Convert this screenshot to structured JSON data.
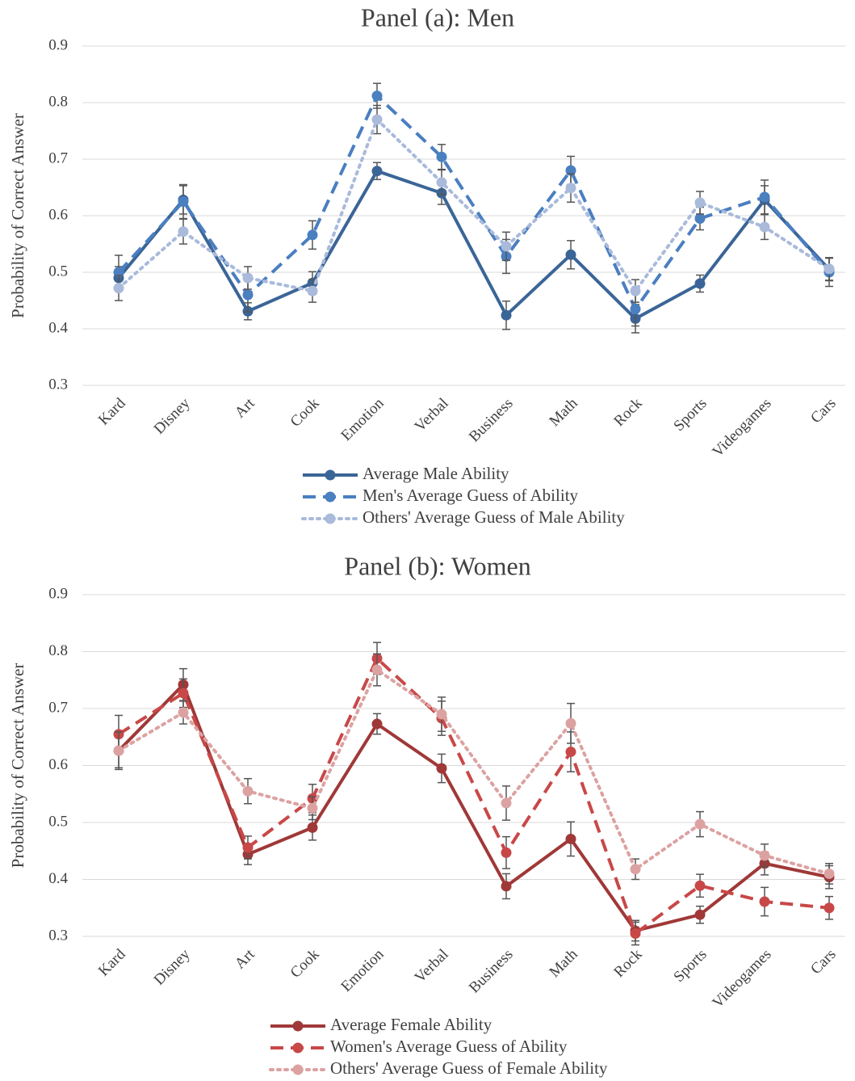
{
  "chart_data": [
    {
      "type": "line",
      "title": "Panel (a): Men",
      "y_label": "Probability of Correct Answer",
      "categories": [
        "Kard",
        "Disney",
        "Art",
        "Cook",
        "Emotion",
        "Verbal",
        "Business",
        "Math",
        "Rock",
        "Sports",
        "Videogames",
        "Cars"
      ],
      "ylim": [
        0.3,
        0.9
      ],
      "yticks": [
        0.3,
        0.4,
        0.5,
        0.6,
        0.7,
        0.8,
        0.9
      ],
      "grid": true,
      "series": [
        {
          "name": "Average Male Ability",
          "color": "#3b6597",
          "dash": "solid",
          "values": [
            0.49,
            0.628,
            0.431,
            0.481,
            0.679,
            0.64,
            0.424,
            0.531,
            0.418,
            0.48,
            0.628,
            0.505
          ],
          "errors": [
            0.02,
            0.025,
            0.015,
            0.02,
            0.015,
            0.02,
            0.025,
            0.025,
            0.025,
            0.015,
            0.025,
            0.02
          ]
        },
        {
          "name": "Men's Average Guess of Ability",
          "color": "#4a7fc0",
          "dash": "dashed",
          "values": [
            0.5,
            0.625,
            0.46,
            0.566,
            0.812,
            0.704,
            0.528,
            0.68,
            0.435,
            0.595,
            0.633,
            0.5
          ],
          "errors": [
            0.03,
            0.03,
            0.03,
            0.025,
            0.022,
            0.022,
            0.03,
            0.025,
            0.03,
            0.02,
            0.03,
            0.025
          ]
        },
        {
          "name": "Others' Average Guess of Male Ability",
          "color": "#a9badb",
          "dash": "dotted",
          "values": [
            0.472,
            0.572,
            0.49,
            0.467,
            0.77,
            0.659,
            0.546,
            0.649,
            0.467,
            0.623,
            0.58,
            0.506
          ],
          "errors": [
            0.022,
            0.022,
            0.02,
            0.02,
            0.025,
            0.022,
            0.025,
            0.025,
            0.02,
            0.02,
            0.022,
            0.02
          ]
        }
      ]
    },
    {
      "type": "line",
      "title": "Panel (b): Women",
      "y_label": "Probability of Correct Answer",
      "categories": [
        "Kard",
        "Disney",
        "Art",
        "Cook",
        "Emotion",
        "Verbal",
        "Business",
        "Math",
        "Rock",
        "Sports",
        "Videogames",
        "Cars"
      ],
      "ylim": [
        0.3,
        0.9
      ],
      "yticks": [
        0.3,
        0.4,
        0.5,
        0.6,
        0.7,
        0.8,
        0.9
      ],
      "grid": true,
      "series": [
        {
          "name": "Average Female Ability",
          "color": "#a03838",
          "dash": "solid",
          "values": [
            0.626,
            0.742,
            0.444,
            0.491,
            0.673,
            0.595,
            0.388,
            0.471,
            0.31,
            0.338,
            0.428,
            0.404
          ],
          "errors": [
            0.03,
            0.028,
            0.018,
            0.022,
            0.018,
            0.025,
            0.022,
            0.03,
            0.018,
            0.015,
            0.02,
            0.02
          ]
        },
        {
          "name": "Women's Average Guess of Ability",
          "color": "#c84848",
          "dash": "dashed",
          "values": [
            0.655,
            0.727,
            0.456,
            0.542,
            0.788,
            0.683,
            0.447,
            0.624,
            0.305,
            0.389,
            0.361,
            0.35
          ],
          "errors": [
            0.033,
            0.025,
            0.02,
            0.025,
            0.028,
            0.03,
            0.028,
            0.035,
            0.02,
            0.02,
            0.025,
            0.02
          ]
        },
        {
          "name": "Others' Average Guess of Female Ability",
          "color": "#dca2a2",
          "dash": "dotted",
          "values": [
            0.626,
            0.693,
            0.555,
            0.525,
            0.768,
            0.69,
            0.534,
            0.674,
            0.418,
            0.497,
            0.442,
            0.41
          ],
          "errors": [
            0.033,
            0.02,
            0.022,
            0.02,
            0.028,
            0.03,
            0.03,
            0.035,
            0.018,
            0.022,
            0.02,
            0.018
          ]
        }
      ]
    }
  ]
}
